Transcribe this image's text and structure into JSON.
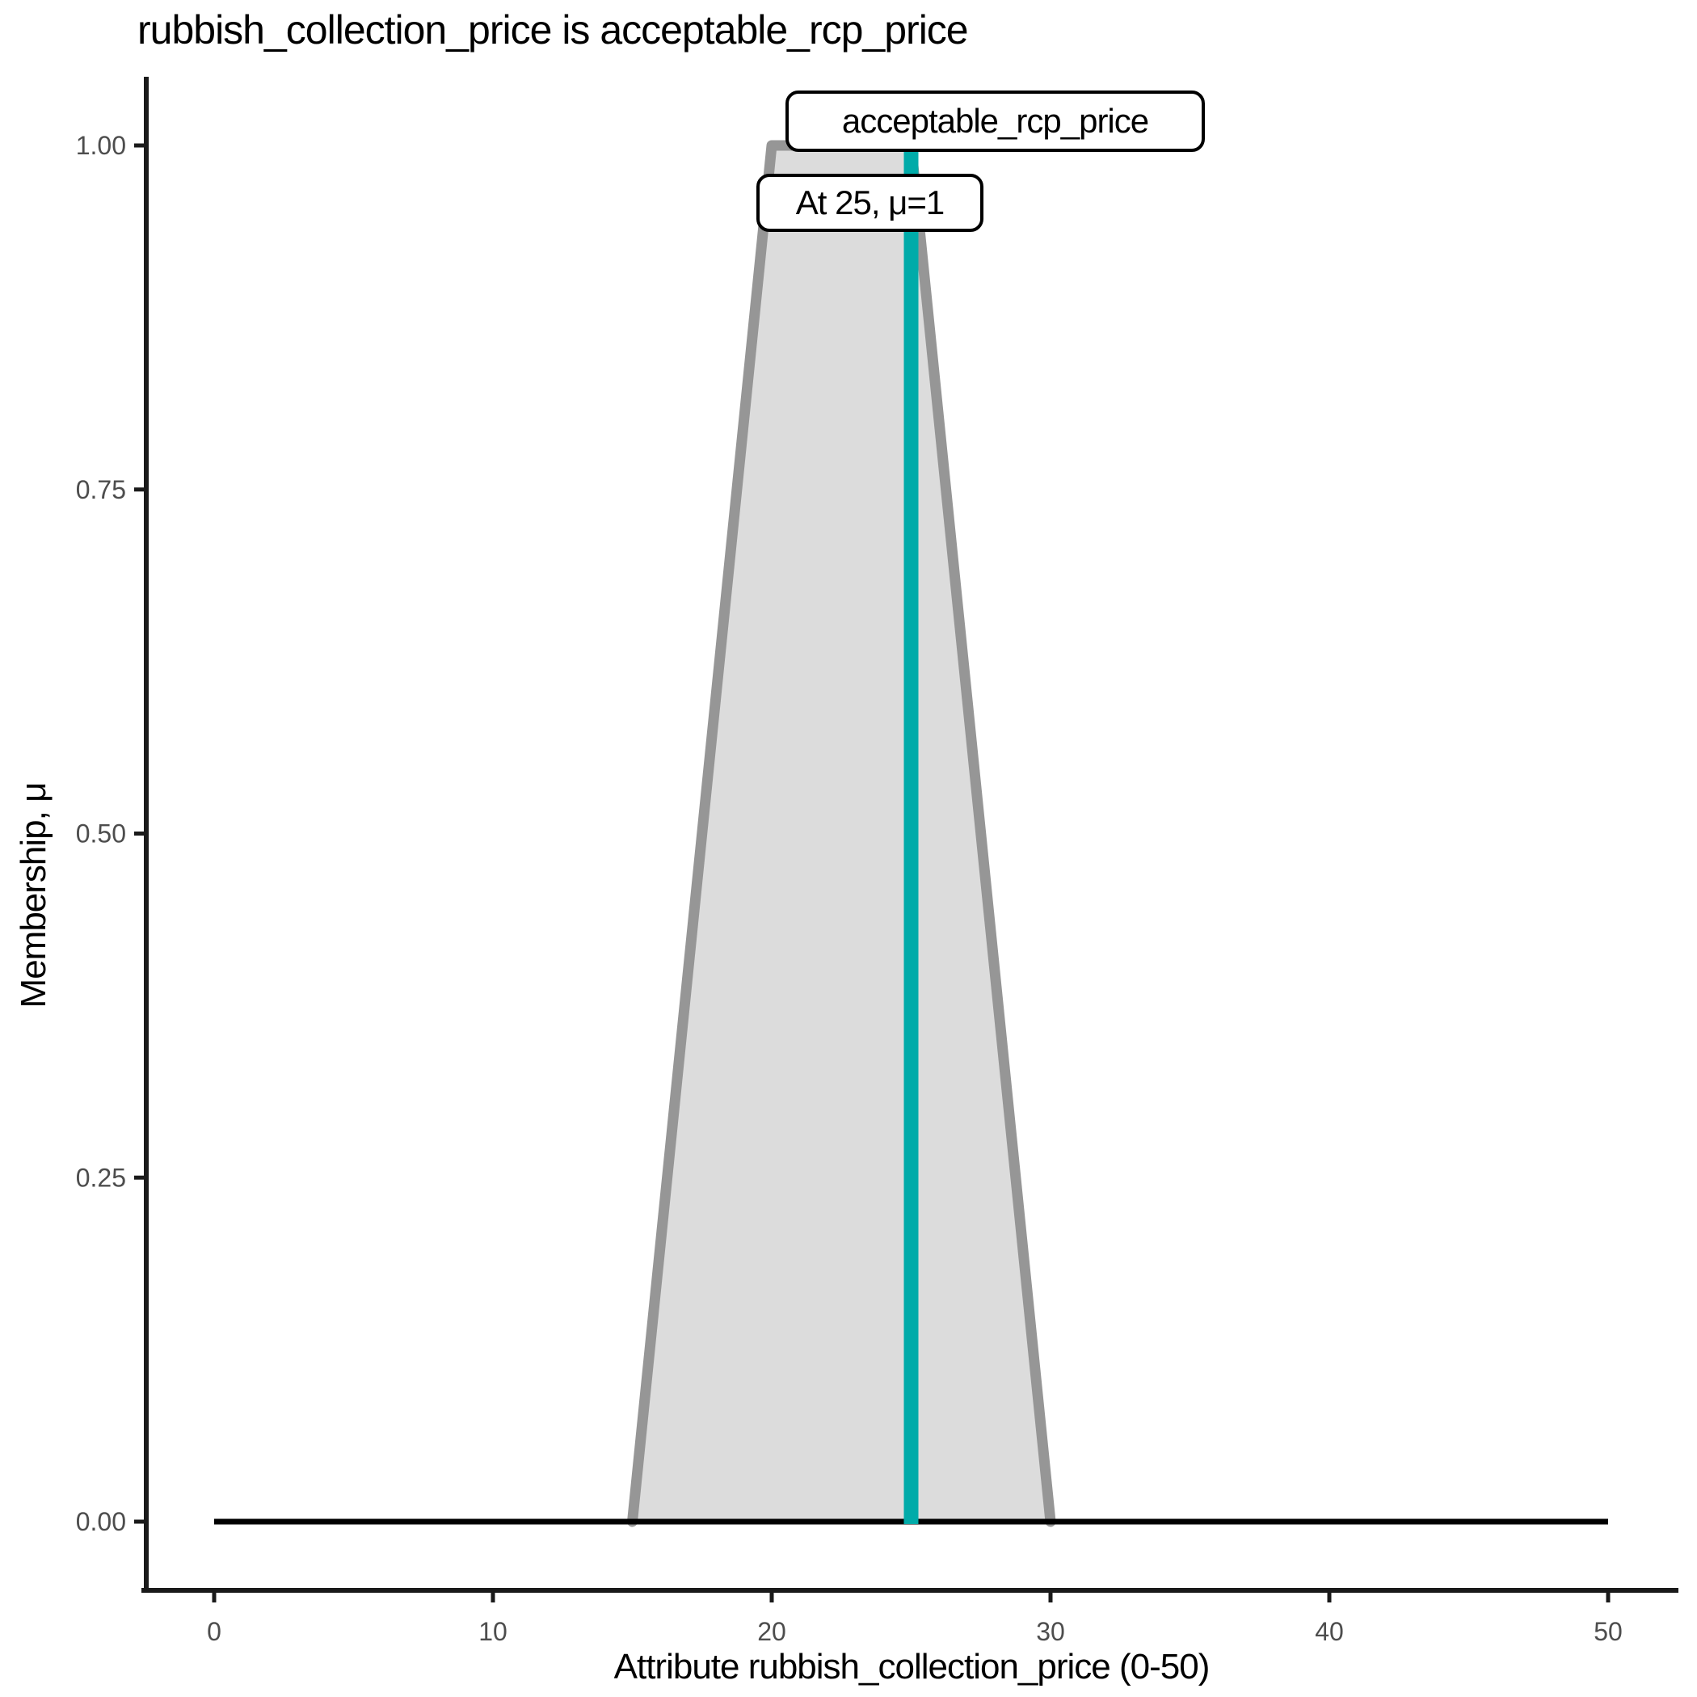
{
  "title": "rubbish_collection_price is acceptable_rcp_price",
  "annotations": {
    "set_label": "acceptable_rcp_price",
    "point_label": "At 25, μ=1"
  },
  "colors": {
    "membership_fill": "#DCDCDC",
    "membership_stroke": "#969696",
    "crisp_line": "#00ABA9",
    "baseline": "#000000",
    "spine": "#1A1A1A",
    "tick_label": "#4D4D4D",
    "text": "#000000",
    "annotation_bg": "#FFFFFF",
    "annotation_border": "#000000"
  },
  "chart_data": {
    "type": "area",
    "title": "rubbish_collection_price is acceptable_rcp_price",
    "xlabel": "Attribute rubbish_collection_price (0-50)",
    "ylabel": "Membership, μ",
    "xlim": [
      0,
      50
    ],
    "ylim": [
      0,
      1
    ],
    "grid": false,
    "x_ticks": [
      0,
      10,
      20,
      30,
      40,
      50
    ],
    "x_tick_labels": [
      "0",
      "10",
      "20",
      "30",
      "40",
      "50"
    ],
    "y_ticks": [
      0.0,
      0.25,
      0.5,
      0.75,
      1.0
    ],
    "y_tick_labels": [
      "0.00",
      "0.25",
      "0.50",
      "0.75",
      "1.00"
    ],
    "membership_function": {
      "name": "acceptable_rcp_price",
      "shape": "trapezoid",
      "params": [
        15,
        20,
        25,
        30
      ],
      "x": [
        0,
        15,
        20,
        25,
        30,
        50
      ],
      "y": [
        0,
        0,
        1,
        1,
        0,
        0
      ]
    },
    "series": [
      {
        "name": "universe-baseline",
        "kind": "hline",
        "y": 0,
        "x_start": 0,
        "x_end": 50,
        "color": "#000000",
        "width": 7
      },
      {
        "name": "membership-area",
        "kind": "area",
        "x": [
          15,
          20,
          25,
          30
        ],
        "y": [
          0,
          1,
          1,
          0
        ],
        "fill": "#DCDCDC",
        "stroke": "#969696",
        "stroke_width": 13
      },
      {
        "name": "crisp-value-line",
        "kind": "vline",
        "x": 25,
        "y_start": 0,
        "y_end": 1,
        "color": "#00ABA9",
        "width": 18
      }
    ],
    "crisp_value": {
      "x": 25,
      "mu": 1
    }
  }
}
